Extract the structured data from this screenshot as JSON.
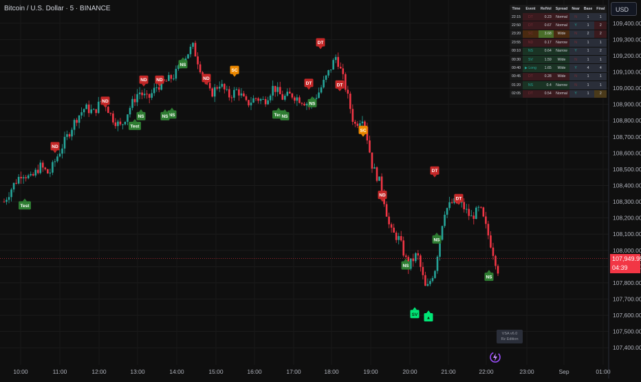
{
  "header": {
    "title": "Bitcoin / U.S. Dollar · 5 · BINANCE",
    "currency": "USD"
  },
  "last_price": {
    "value": "107,949.95",
    "countdown": "04:39"
  },
  "watermark": {
    "line1": "VSA v6.0",
    "line2": "Rz Edition"
  },
  "table": {
    "headers": [
      "Time",
      "Event",
      "RelVol",
      "Spread",
      "Near",
      "Base",
      "Final"
    ],
    "rows": [
      {
        "time": "22:15",
        "event": "DT",
        "relvol": "0.23",
        "spread": "Normal",
        "near": "N",
        "base": "1",
        "final": "1",
        "color": "#3a1a1e"
      },
      {
        "time": "22:50",
        "event": "DT",
        "relvol": "0.67",
        "spread": "Normal",
        "near": "Y",
        "base": "1",
        "final": "2",
        "color": "#3a1a1e"
      },
      {
        "time": "23:20",
        "event": "SC",
        "relvol": "3.68",
        "spread": "Wide",
        "near": "N",
        "base": "2",
        "final": "2",
        "color": "#4a2a10"
      },
      {
        "time": "23:55",
        "event": "ND",
        "relvol": "0.17",
        "spread": "Narrow",
        "near": "N",
        "base": "1",
        "final": "1",
        "color": "#3a1a1e"
      },
      {
        "time": "00:10",
        "event": "NS",
        "relvol": "0.64",
        "spread": "Narrow",
        "near": "Y",
        "base": "1",
        "final": "2",
        "color": "#1a3324"
      },
      {
        "time": "00:30",
        "event": "SV",
        "relvol": "1.59",
        "spread": "Wide",
        "near": "N",
        "base": "1",
        "final": "1",
        "color": "#1a3324"
      },
      {
        "time": "00:40",
        "event": "▶ Long",
        "relvol": "1.65",
        "spread": "Wide",
        "near": "Y",
        "base": "4",
        "final": "4",
        "color": "#1a3324"
      },
      {
        "time": "00:45",
        "event": "DT",
        "relvol": "0.28",
        "spread": "Wide",
        "near": "N",
        "base": "1",
        "final": "1",
        "color": "#3a1a1e"
      },
      {
        "time": "01:20",
        "event": "NS",
        "relvol": "0.4",
        "spread": "Narrow",
        "near": "N",
        "base": "1",
        "final": "1",
        "color": "#1a3324"
      },
      {
        "time": "02:05",
        "event": "DT",
        "relvol": "0.54",
        "spread": "Normal",
        "near": "Y",
        "base": "1",
        "final": "2",
        "color": "#3a1a1e"
      }
    ]
  },
  "chart_data": {
    "type": "candlestick",
    "title": "Bitcoin / U.S. Dollar · 5 · BINANCE",
    "x_ticks": [
      "10:00",
      "11:00",
      "12:00",
      "13:00",
      "14:00",
      "15:00",
      "16:00",
      "17:00",
      "18:00",
      "19:00",
      "20:00",
      "21:00",
      "22:00",
      "23:00",
      "Sep",
      "01:00"
    ],
    "y_ticks": [
      "109,400.00",
      "109,300.00",
      "109,200.00",
      "109,100.00",
      "109,000.00",
      "108,900.00",
      "108,800.00",
      "108,700.00",
      "108,600.00",
      "108,500.00",
      "108,400.00",
      "108,300.00",
      "108,200.00",
      "108,100.00",
      "108,000.00",
      "107,900.00",
      "107,800.00",
      "107,700.00",
      "107,600.00",
      "107,500.00",
      "107,400.00"
    ],
    "y_range": [
      107350,
      109450
    ],
    "up_color": "#26a69a",
    "down_color": "#f23645",
    "current_price": 107949.95,
    "series": [
      {
        "name": "path",
        "values": [
          108300,
          108400,
          108480,
          108440,
          108520,
          108470,
          108590,
          108700,
          108810,
          108880,
          108850,
          108940,
          108820,
          108760,
          108880,
          108980,
          108930,
          109010,
          109040,
          109080,
          109180,
          109260,
          109100,
          108960,
          109030,
          108950,
          108990,
          108900,
          108940,
          108920,
          109010,
          108940,
          108960,
          108930,
          108900,
          108970,
          109080,
          109200,
          109010,
          108770,
          108830,
          108520,
          108400,
          108120,
          108070,
          107900,
          107980,
          107750,
          107890,
          108240,
          108300,
          108280,
          108200,
          108260,
          108080,
          107880
        ]
      }
    ],
    "signals": [
      {
        "label": "Test",
        "kind": "bull",
        "price": 108320
      },
      {
        "label": "ND",
        "kind": "bear",
        "price": 108600
      },
      {
        "label": "ND",
        "kind": "bear",
        "price": 108880
      },
      {
        "label": "ND",
        "kind": "bear",
        "price": 109010
      },
      {
        "label": "NS",
        "kind": "bull",
        "price": 108870
      },
      {
        "label": "Test",
        "kind": "bull",
        "price": 108810
      },
      {
        "label": "NS",
        "kind": "bull",
        "price": 108880
      },
      {
        "label": "ND",
        "kind": "bear",
        "price": 109010
      },
      {
        "label": "NS",
        "kind": "bull",
        "price": 108870
      },
      {
        "label": "NS",
        "kind": "bull",
        "price": 109190
      },
      {
        "label": "ND",
        "kind": "bear",
        "price": 109020
      },
      {
        "label": "SC",
        "kind": "climax",
        "price": 109070
      },
      {
        "label": "Test",
        "kind": "bull",
        "price": 108880
      },
      {
        "label": "NS",
        "kind": "bull",
        "price": 108870
      },
      {
        "label": "DT",
        "kind": "bear",
        "price": 108990
      },
      {
        "label": "NS",
        "kind": "bull",
        "price": 108950
      },
      {
        "label": "DT",
        "kind": "bear",
        "price": 109240
      },
      {
        "label": "DT",
        "kind": "bear",
        "price": 108980
      },
      {
        "label": "SC",
        "kind": "climax",
        "price": 108700
      },
      {
        "label": "ND",
        "kind": "bear",
        "price": 108300
      },
      {
        "label": "NS",
        "kind": "bull",
        "price": 107950
      },
      {
        "label": "SV",
        "kind": "sv",
        "price": 107650
      },
      {
        "label": "▲",
        "kind": "sv",
        "price": 107630
      },
      {
        "label": "DT",
        "kind": "bear",
        "price": 108450
      },
      {
        "label": "NS",
        "kind": "bull",
        "price": 108110
      },
      {
        "label": "DT",
        "kind": "bear",
        "price": 108280
      },
      {
        "label": "NS",
        "kind": "bull",
        "price": 107880
      }
    ]
  }
}
